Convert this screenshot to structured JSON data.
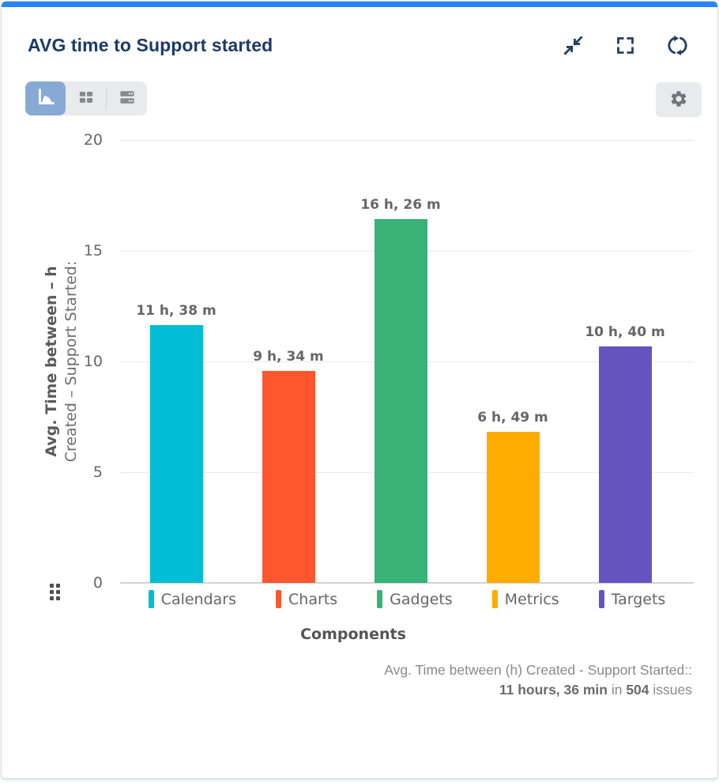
{
  "window": {
    "accent_color": "#2684FF"
  },
  "header": {
    "title": "AVG time to Support started",
    "actions": [
      {
        "id": "collapse",
        "icon": "collapse-icon"
      },
      {
        "id": "fullscreen",
        "icon": "fullscreen-icon"
      },
      {
        "id": "refresh",
        "icon": "refresh-icon"
      }
    ]
  },
  "toolbar": {
    "view_options": [
      {
        "id": "chart-view",
        "icon": "area-chart-icon",
        "active": true
      },
      {
        "id": "table-view",
        "icon": "table-icon",
        "active": false
      },
      {
        "id": "rows-view",
        "icon": "rows-icon",
        "active": false
      }
    ],
    "active_color": "#87AAD5",
    "settings_icon": "gear-icon"
  },
  "chart_data": {
    "type": "bar",
    "title": "",
    "categories": [
      "Calendars",
      "Charts",
      "Gadgets",
      "Metrics",
      "Targets"
    ],
    "series": [
      {
        "name": "Avg. Time between (h) Created - Support Started:",
        "values_hours": [
          11.633,
          9.567,
          16.433,
          6.817,
          10.667
        ]
      }
    ],
    "value_labels": [
      "11 h, 38 m",
      "9 h, 34 m",
      "16 h, 26 m",
      "6 h, 49 m",
      "10 h, 40 m"
    ],
    "bar_colors": [
      "#00BDD6",
      "#FF5630",
      "#38B277",
      "#FFAB00",
      "#6554C0"
    ],
    "xlabel": "Components",
    "ylabel_line1": "Avg. Time between – h",
    "ylabel_line2": "Created – Support Started:",
    "ylim": [
      0,
      20
    ],
    "yticks": [
      0,
      5,
      10,
      15,
      20
    ],
    "grid": true,
    "legend_position": "bottom"
  },
  "footer": {
    "line1": "Avg. Time between (h) Created - Support Started::",
    "value_bold": "11 hours, 36 min",
    "connector": " in ",
    "count_bold": "504",
    "suffix": " issues"
  }
}
